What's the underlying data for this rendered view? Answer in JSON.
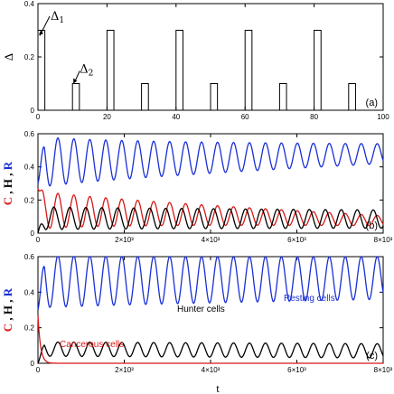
{
  "chart_data": [
    {
      "type": "line",
      "panel": "(a)",
      "xlabel": "",
      "ylabel": "Δ",
      "xlim": [
        0,
        100
      ],
      "ylim": [
        0,
        0.4
      ],
      "xticks": [
        "0",
        "20",
        "40",
        "60",
        "80",
        "100"
      ],
      "yticks": [
        "0",
        "0.2",
        "0.4"
      ],
      "grid": false,
      "pulses": [
        {
          "t": 0,
          "height": 0.3
        },
        {
          "t": 10,
          "height": 0.1
        },
        {
          "t": 20,
          "height": 0.3
        },
        {
          "t": 30,
          "height": 0.1
        },
        {
          "t": 40,
          "height": 0.3
        },
        {
          "t": 50,
          "height": 0.1
        },
        {
          "t": 60,
          "height": 0.3
        },
        {
          "t": 70,
          "height": 0.1
        },
        {
          "t": 80,
          "height": 0.3
        },
        {
          "t": 90,
          "height": 0.1
        }
      ],
      "pulse_width": 2,
      "annotations": [
        {
          "text": "Δ1",
          "target_t": 0,
          "target_value": 0.3
        },
        {
          "text": "Δ2",
          "target_t": 10,
          "target_value": 0.1
        }
      ],
      "color": "#000000"
    },
    {
      "type": "line",
      "panel": "(b)",
      "xlabel": "",
      "ylabel": "C , H , R",
      "xlim": [
        0,
        8000
      ],
      "ylim": [
        0,
        0.6
      ],
      "xticks": [
        "0",
        "2×10³",
        "4×10³",
        "6×10³",
        "8×10³"
      ],
      "yticks": [
        "0",
        "0.2",
        "0.4",
        "0.6"
      ],
      "grid": false,
      "series": [
        {
          "color": "#1a2fd6",
          "t_start": 0,
          "mean_start": 0.43,
          "mean_end": 0.48,
          "amp_start": 0.16,
          "amp_end": 0.06,
          "period": 370,
          "initial": 0.3,
          "dip_min": 0.27
        },
        {
          "color": "#d81818",
          "t_start": 0,
          "mean_start": 0.14,
          "mean_end": 0.075,
          "amp_start": 0.12,
          "amp_end": 0.03,
          "period": 370,
          "initial": 0.27,
          "phase": 0.0
        },
        {
          "color": "#000000",
          "t_start": 0,
          "mean_start": 0.09,
          "mean_end": 0.085,
          "amp_start": 0.07,
          "amp_end": 0.055,
          "period": 370,
          "initial": 0.0,
          "phase": 0.5
        }
      ]
    },
    {
      "type": "line",
      "panel": "(c)",
      "xlabel": "t",
      "ylabel": "C , H , R",
      "xlim": [
        0,
        8000
      ],
      "ylim": [
        0,
        0.6
      ],
      "xticks": [
        "0",
        "2×10³",
        "4×10³",
        "6×10³",
        "8×10³"
      ],
      "yticks": [
        "0",
        "0.2",
        "0.4",
        "0.6"
      ],
      "grid": false,
      "series": [
        {
          "name": "Resting cells",
          "color": "#1a2fd6",
          "mean_start": 0.46,
          "mean_end": 0.48,
          "amp_start": 0.15,
          "amp_end": 0.12,
          "period": 370,
          "initial": 0.3
        },
        {
          "name": "Hunter cells",
          "color": "#000000",
          "mean_start": 0.08,
          "mean_end": 0.07,
          "amp_start": 0.04,
          "amp_end": 0.04,
          "period": 370,
          "initial": 0.0
        },
        {
          "name": "Cancerous cells",
          "color": "#d81818",
          "mean_start": 0.0,
          "mean_end": 0.0,
          "amp_start": 0.0,
          "amp_end": 0.0,
          "period": 370,
          "initial": 0.27
        }
      ]
    }
  ]
}
